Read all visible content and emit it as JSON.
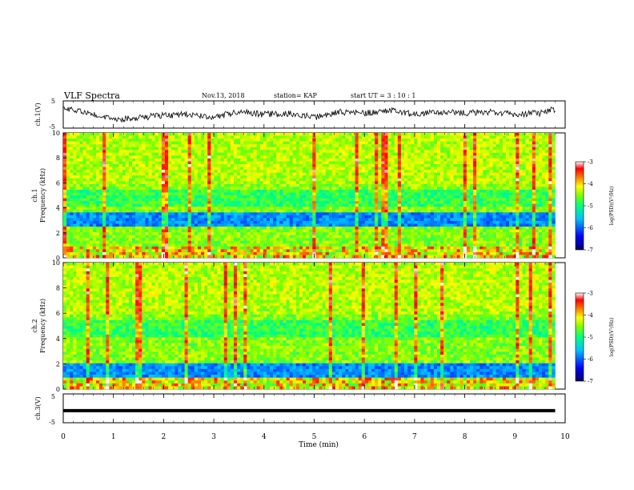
{
  "header": {
    "title": "VLF Spectra",
    "date": "Nov.13, 2018",
    "station": "station= KAP",
    "start": "start  UT =   3 : 10 : 1"
  },
  "chart_data": [
    {
      "type": "line",
      "name": "ch1-waveform",
      "ylabel": "ch.1(V)",
      "ylim": [
        -5,
        5
      ],
      "yticks": [
        "5",
        "-5"
      ],
      "xlim": [
        0,
        10
      ],
      "x_min": [
        0.0,
        0.5,
        1.0,
        1.5,
        2.0,
        2.5,
        3.0,
        3.5,
        4.0,
        4.5,
        5.0,
        5.5,
        6.0,
        6.5,
        7.0,
        7.5,
        8.0,
        8.5,
        9.0,
        9.5,
        9.8
      ],
      "y_volt": [
        2,
        0.5,
        -2,
        -1,
        -0.5,
        0,
        -1,
        1,
        0,
        0.5,
        -1,
        1,
        0.5,
        1.5,
        0,
        1,
        0.5,
        1,
        0,
        0.5,
        2
      ]
    },
    {
      "type": "heatmap",
      "name": "ch1-spectrogram",
      "ylabel": "ch.1\nFrequency (kHz)",
      "ylim": [
        0,
        10
      ],
      "yticks": [
        "0",
        "2",
        "4",
        "6",
        "8",
        "10"
      ],
      "xlim": [
        0,
        9.8
      ],
      "colorbar": {
        "label": "log(PSD)(V²/Hz)",
        "range": [
          -7,
          -3
        ],
        "ticks": [
          "-3",
          "-4",
          "-5",
          "-6",
          "-7"
        ]
      }
    },
    {
      "type": "heatmap",
      "name": "ch2-spectrogram",
      "ylabel": "ch.2\nFrequency (kHz)",
      "ylim": [
        0,
        10
      ],
      "yticks": [
        "0",
        "2",
        "4",
        "6",
        "8",
        "10"
      ],
      "xlim": [
        0,
        9.8
      ],
      "colorbar": {
        "label": "log(PSD)(V²/Hz)",
        "range": [
          -7,
          -3
        ],
        "ticks": [
          "-3",
          "-4",
          "-5",
          "-6",
          "-7"
        ]
      }
    },
    {
      "type": "line",
      "name": "ch3-waveform",
      "ylabel": "ch.3(V)",
      "ylim": [
        -5,
        5
      ],
      "yticks": [
        "5",
        "-5"
      ],
      "xlim": [
        0,
        10
      ],
      "x_min": [
        0,
        9.8
      ],
      "y_volt": [
        -0.8,
        -0.8
      ]
    }
  ],
  "xaxis": {
    "label": "Time  (min)",
    "ticks": [
      "0",
      "1",
      "2",
      "3",
      "4",
      "5",
      "6",
      "7",
      "8",
      "9",
      "10"
    ]
  },
  "colors": {
    "cmap": [
      "#000060",
      "#0000ff",
      "#00c0ff",
      "#00ff80",
      "#80ff00",
      "#ffff00",
      "#ff8000",
      "#ff0000",
      "#ffffff"
    ]
  }
}
